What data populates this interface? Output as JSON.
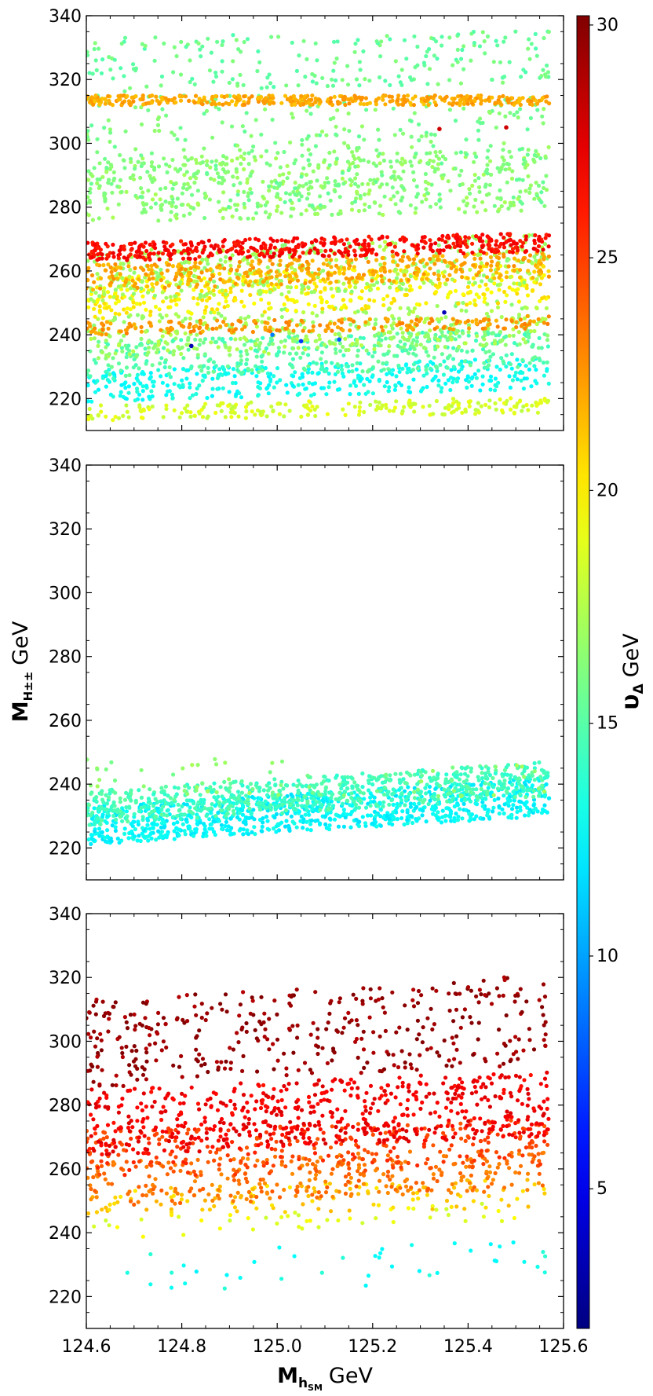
{
  "chart_data": {
    "type": "scatter",
    "x_label": {
      "main": "M",
      "sub": "h",
      "subsub": "SM",
      "unit": "GeV"
    },
    "y_label": {
      "main": "M",
      "sup": "H±±",
      "unit": "GeV"
    },
    "colorbar_label": {
      "main": "υ",
      "sub": "Δ",
      "unit": "GeV"
    },
    "xlim": [
      124.6,
      125.6
    ],
    "ylim": [
      210,
      340
    ],
    "x_ticks": [
      "124.6",
      "124.8",
      "125.0",
      "125.2",
      "125.4",
      "125.6"
    ],
    "y_ticks": [
      "220",
      "240",
      "260",
      "280",
      "300",
      "320",
      "340"
    ],
    "colorbar": {
      "range": [
        2,
        30.2
      ],
      "ticks": [
        "5",
        "10",
        "15",
        "20",
        "25",
        "30"
      ],
      "colormap": "jet"
    },
    "panels": [
      {
        "name": "top",
        "bands": [
          {
            "y0": 213,
            "y1": 218,
            "v": 18.5,
            "n": 220,
            "h": 2.5
          },
          {
            "y0": 219,
            "y1": 229,
            "v": 13,
            "n": 380,
            "h": 4
          },
          {
            "y0": 226,
            "y1": 238,
            "v": 15,
            "n": 380,
            "h": 4
          },
          {
            "y0": 232,
            "y1": 246,
            "v": 17,
            "n": 380,
            "h": 5
          },
          {
            "y0": 240,
            "y1": 244,
            "v": 22.5,
            "n": 200,
            "h": 2
          },
          {
            "y0": 245,
            "y1": 258,
            "v": 20,
            "n": 420,
            "h": 5
          },
          {
            "y0": 250,
            "y1": 266,
            "v": 17,
            "n": 420,
            "h": 6
          },
          {
            "y0": 254,
            "y1": 262,
            "v": 22,
            "n": 380,
            "h": 4
          },
          {
            "y0": 263,
            "y1": 269,
            "v": 26.5,
            "n": 450,
            "h": 3
          },
          {
            "y0": 275,
            "y1": 295,
            "v": 16.5,
            "n": 500,
            "h": 4
          },
          {
            "y0": 280,
            "y1": 315,
            "v": 16,
            "n": 350,
            "h": 0
          },
          {
            "y0": 312,
            "y1": 315,
            "v": 22,
            "n": 380,
            "h": 0
          },
          {
            "y0": 316,
            "y1": 333,
            "v": 15.5,
            "n": 220,
            "h": 3
          }
        ],
        "points": [
          {
            "x": 124.82,
            "y": 236.5,
            "v": 3.5
          },
          {
            "x": 125.05,
            "y": 238,
            "v": 7
          },
          {
            "x": 125.13,
            "y": 238.5,
            "v": 8
          },
          {
            "x": 125.35,
            "y": 247,
            "v": 3.5
          },
          {
            "x": 124.99,
            "y": 240,
            "v": 9
          },
          {
            "x": 125.34,
            "y": 304.5,
            "v": 28
          },
          {
            "x": 125.48,
            "y": 305,
            "v": 28
          }
        ]
      },
      {
        "name": "middle",
        "bands": [
          {
            "y0": 221,
            "y1": 233,
            "v": 12.5,
            "n": 900,
            "h": 9
          },
          {
            "y0": 227,
            "y1": 238,
            "v": 14.5,
            "n": 700,
            "h": 9
          },
          {
            "y0": 236,
            "y1": 248,
            "v": 16.5,
            "n": 60,
            "h": 0
          }
        ],
        "points": []
      },
      {
        "name": "bottom",
        "bands": [
          {
            "y0": 221,
            "y1": 234,
            "v": 13,
            "n": 40,
            "h": 4
          },
          {
            "y0": 238,
            "y1": 244,
            "v": 19,
            "n": 45,
            "h": 6
          },
          {
            "y0": 245,
            "y1": 254,
            "v": 21,
            "n": 120,
            "h": 3
          },
          {
            "y0": 248,
            "y1": 262,
            "v": 23.5,
            "n": 300,
            "h": 5
          },
          {
            "y0": 257,
            "y1": 272,
            "v": 25,
            "n": 300,
            "h": 4
          },
          {
            "y0": 264,
            "y1": 285,
            "v": 27,
            "n": 600,
            "h": 6
          },
          {
            "y0": 285,
            "y1": 313,
            "v": 29.5,
            "n": 380,
            "h": 8
          }
        ],
        "points": []
      }
    ]
  },
  "colors": {
    "frame": "#000000",
    "background": "#ffffff"
  }
}
